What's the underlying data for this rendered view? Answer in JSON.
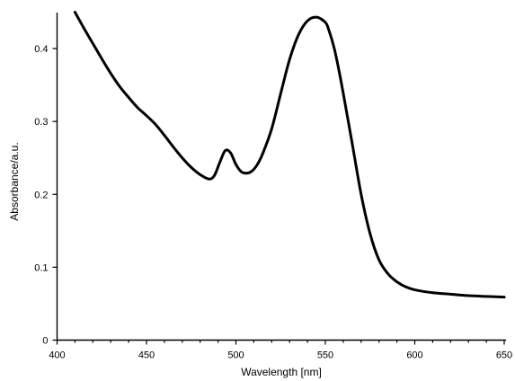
{
  "chart_data": {
    "type": "line",
    "title": "",
    "xlabel": "Wavelength [nm]",
    "ylabel": "Absorbance/a.u.",
    "xlim": [
      400,
      650
    ],
    "ylim": [
      0,
      0.45
    ],
    "x_ticks": [
      400,
      450,
      500,
      550,
      600,
      650
    ],
    "y_ticks": [
      0,
      0.1,
      0.2,
      0.3,
      0.4
    ],
    "x_tick_labels": [
      "400",
      "450",
      "500",
      "550",
      "600",
      "650"
    ],
    "y_tick_labels": [
      "0",
      "0.1",
      "0.2",
      "0.3",
      "0.4"
    ],
    "grid": false,
    "legend": "none",
    "series": [
      {
        "color": "#000000",
        "x": [
          410,
          415,
          420,
          425,
          430,
          435,
          440,
          445,
          450,
          455,
          460,
          465,
          470,
          475,
          480,
          485,
          488,
          491,
          494,
          497,
          500,
          503,
          506,
          509,
          512,
          515,
          520,
          525,
          530,
          535,
          540,
          545,
          550,
          552,
          555,
          558,
          561,
          565,
          570,
          575,
          580,
          585,
          590,
          595,
          600,
          610,
          620,
          630,
          640,
          650
        ],
        "values": [
          0.45,
          0.428,
          0.407,
          0.386,
          0.366,
          0.348,
          0.333,
          0.319,
          0.308,
          0.296,
          0.281,
          0.265,
          0.25,
          0.237,
          0.227,
          0.221,
          0.226,
          0.244,
          0.26,
          0.257,
          0.241,
          0.231,
          0.229,
          0.232,
          0.241,
          0.256,
          0.29,
          0.338,
          0.385,
          0.419,
          0.438,
          0.443,
          0.436,
          0.425,
          0.4,
          0.365,
          0.325,
          0.27,
          0.2,
          0.146,
          0.11,
          0.091,
          0.08,
          0.073,
          0.069,
          0.065,
          0.063,
          0.061,
          0.06,
          0.059
        ]
      }
    ]
  }
}
